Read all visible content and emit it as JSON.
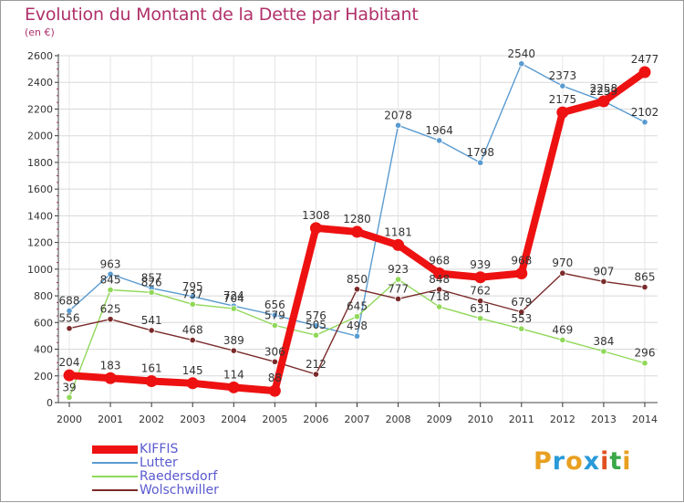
{
  "title": "Evolution du Montant de la Dette par Habitant",
  "unit": "(en €)",
  "brand": {
    "text": "Proxiti",
    "letter_colors": [
      "#e8a020",
      "#2a9ad8",
      "#e8a020",
      "#2a9ad8",
      "#e05020",
      "#3aa848",
      "#e8a020"
    ]
  },
  "chart_data": {
    "type": "line",
    "title": "Evolution du Montant de la Dette par Habitant",
    "ylabel": "(en €)",
    "xlabel": "",
    "x": [
      2000,
      2001,
      2002,
      2003,
      2004,
      2005,
      2006,
      2007,
      2008,
      2009,
      2010,
      2011,
      2012,
      2013,
      2014
    ],
    "yticks": [
      0,
      200,
      400,
      600,
      800,
      1000,
      1200,
      1400,
      1600,
      1800,
      2000,
      2200,
      2400,
      2600
    ],
    "ylim": [
      0,
      2600
    ],
    "grid": true,
    "legend_position": "bottom-left",
    "series": [
      {
        "name": "KIFFIS",
        "color": "#ee1111",
        "emphasis": true,
        "values": [
          204,
          183,
          161,
          145,
          114,
          88,
          1308,
          1280,
          1181,
          968,
          939,
          968,
          2175,
          2258,
          2477
        ]
      },
      {
        "name": "Lutter",
        "color": "#5a9bd0",
        "emphasis": false,
        "values": [
          688,
          963,
          857,
          795,
          724,
          656,
          576,
          498,
          2078,
          1964,
          1798,
          2540,
          2373,
          2259,
          2102
        ]
      },
      {
        "name": "Raedersdorf",
        "color": "#90d858",
        "emphasis": false,
        "values": [
          39,
          845,
          826,
          737,
          704,
          579,
          505,
          645,
          923,
          718,
          631,
          553,
          469,
          384,
          296
        ]
      },
      {
        "name": "Wolschwiller",
        "color": "#7a2a2a",
        "emphasis": false,
        "values": [
          556,
          625,
          541,
          468,
          389,
          306,
          212,
          850,
          777,
          848,
          762,
          679,
          970,
          907,
          865
        ]
      }
    ]
  }
}
